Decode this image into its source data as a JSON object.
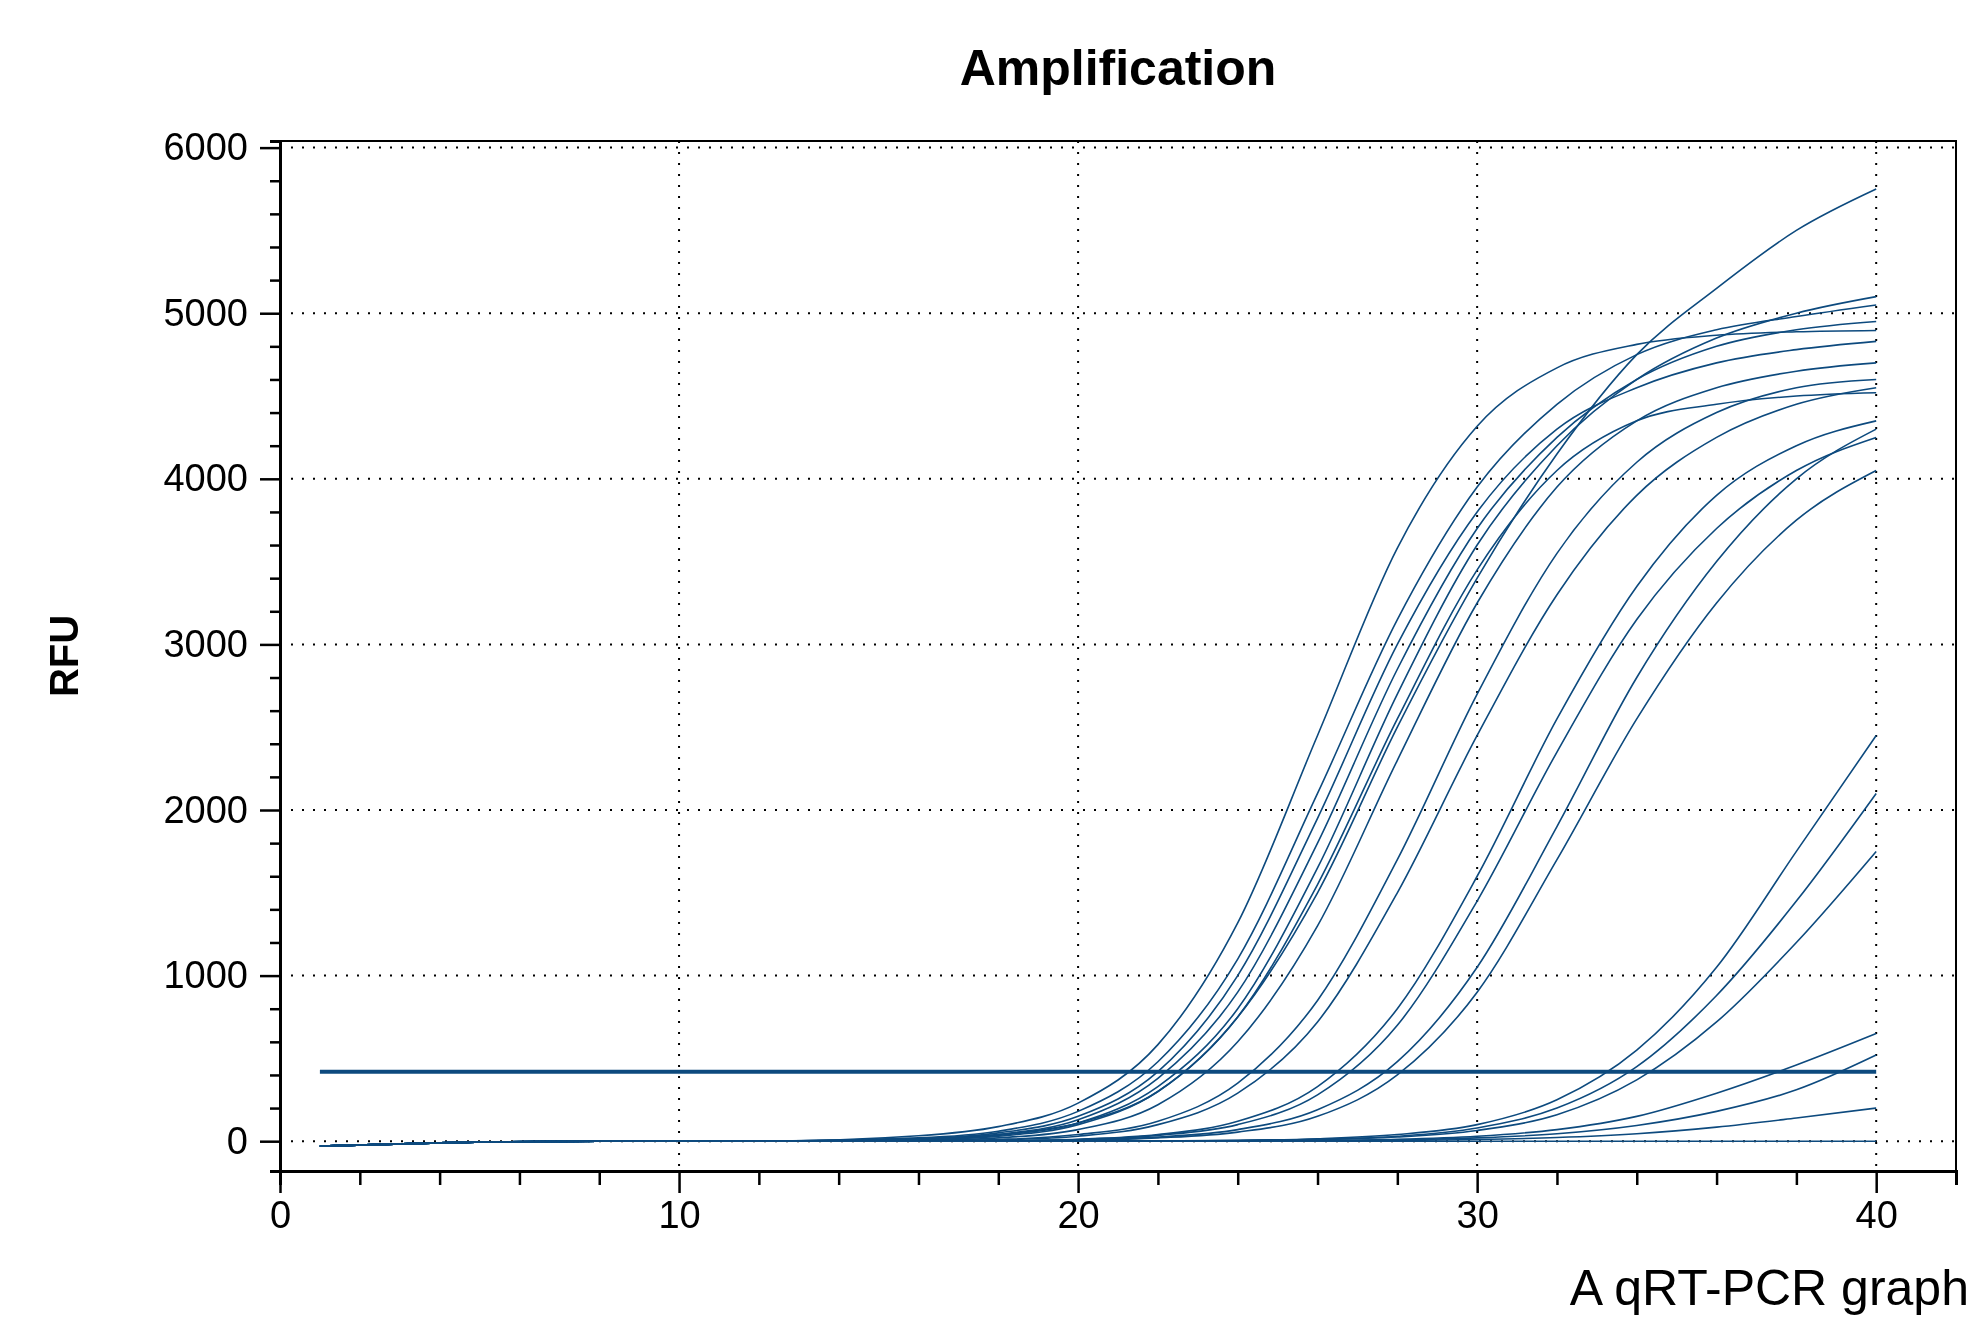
{
  "chart_data": {
    "type": "line",
    "title": "Amplification",
    "ylabel": "RFU",
    "annotations": [
      "A qRT-PCR graph"
    ],
    "x": [
      1,
      4,
      8,
      12,
      16,
      18,
      20,
      22,
      24,
      26,
      28,
      30,
      32,
      34,
      36,
      38,
      40
    ],
    "xlim": [
      0,
      42
    ],
    "ylim": [
      -180,
      6040
    ],
    "xticks": [
      0,
      {
        "value": 2,
        "label": null
      },
      {
        "value": 4,
        "label": null
      },
      {
        "value": 6,
        "label": null
      },
      {
        "value": 8,
        "label": null
      },
      10,
      {
        "value": 12,
        "label": null
      },
      {
        "value": 14,
        "label": null
      },
      {
        "value": 16,
        "label": null
      },
      {
        "value": 18,
        "label": null
      },
      20,
      {
        "value": 22,
        "label": null
      },
      {
        "value": 24,
        "label": null
      },
      {
        "value": 26,
        "label": null
      },
      {
        "value": 28,
        "label": null
      },
      30,
      {
        "value": 32,
        "label": null
      },
      {
        "value": 34,
        "label": null
      },
      {
        "value": 36,
        "label": null
      },
      {
        "value": 38,
        "label": null
      },
      40
    ],
    "yticks": [
      0,
      {
        "value": 200,
        "label": null
      },
      {
        "value": 400,
        "label": null
      },
      {
        "value": 600,
        "label": null
      },
      {
        "value": 800,
        "label": null
      },
      1000,
      {
        "value": 1200,
        "label": null
      },
      {
        "value": 1400,
        "label": null
      },
      {
        "value": 1600,
        "label": null
      },
      {
        "value": 1800,
        "label": null
      },
      2000,
      {
        "value": 2200,
        "label": null
      },
      {
        "value": 2400,
        "label": null
      },
      {
        "value": 2600,
        "label": null
      },
      {
        "value": 2800,
        "label": null
      },
      3000,
      {
        "value": 3200,
        "label": null
      },
      {
        "value": 3400,
        "label": null
      },
      {
        "value": 3600,
        "label": null
      },
      {
        "value": 3800,
        "label": null
      },
      4000,
      {
        "value": 4200,
        "label": null
      },
      {
        "value": 4400,
        "label": null
      },
      {
        "value": 4600,
        "label": null
      },
      {
        "value": 4800,
        "label": null
      },
      5000,
      {
        "value": 5200,
        "label": null
      },
      {
        "value": 5400,
        "label": null
      },
      {
        "value": 5600,
        "label": null
      },
      {
        "value": 5800,
        "label": null
      },
      6000
    ],
    "grid": true,
    "marker": "none",
    "line_style": "solid",
    "ref_lines": [
      {
        "axis": "y",
        "value": 420,
        "color": "#0d4a7e"
      }
    ],
    "series": [
      {
        "color": "#0d4a7e",
        "values": [
          -30,
          -10,
          0,
          0,
          33,
          88,
          230,
          583,
          1318,
          2450,
          3582,
          4317,
          4670,
          4812,
          4867,
          4888,
          4896
        ]
      },
      {
        "color": "#0d4a7e",
        "values": [
          -30,
          -10,
          0,
          0,
          15,
          40,
          110,
          300,
          750,
          1500,
          2500,
          3400,
          4150,
          4750,
          5150,
          5500,
          5750
        ]
      },
      {
        "color": "#0d4a7e",
        "values": [
          -30,
          -10,
          0,
          0,
          20,
          60,
          180,
          480,
          1100,
          2100,
          3150,
          3950,
          4450,
          4750,
          4900,
          4980,
          5050
        ]
      },
      {
        "color": "#0d4a7e",
        "values": [
          -30,
          -10,
          0,
          0,
          15,
          50,
          150,
          420,
          1000,
          1950,
          3000,
          3800,
          4300,
          4550,
          4700,
          4780,
          4830
        ]
      },
      {
        "color": "#0d4a7e",
        "values": [
          -30,
          -10,
          0,
          0,
          10,
          40,
          130,
          380,
          900,
          1800,
          2850,
          3700,
          4250,
          4600,
          4800,
          4900,
          4950
        ]
      },
      {
        "color": "#0d4a7e",
        "values": [
          -30,
          -10,
          0,
          0,
          10,
          35,
          110,
          330,
          800,
          1650,
          2700,
          3600,
          4200,
          4600,
          4850,
          5000,
          5100
        ]
      },
      {
        "color": "#0d4a7e",
        "values": [
          -30,
          -10,
          0,
          0,
          8,
          30,
          100,
          300,
          750,
          1550,
          2550,
          3450,
          4050,
          4350,
          4450,
          4500,
          4520
        ]
      },
      {
        "color": "#0d4a7e",
        "values": [
          -30,
          -10,
          0,
          0,
          5,
          20,
          70,
          220,
          600,
          1300,
          2300,
          3250,
          3950,
          4350,
          4550,
          4650,
          4700
        ]
      },
      {
        "color": "#0d4a7e",
        "values": [
          -30,
          -10,
          0,
          0,
          3,
          10,
          40,
          120,
          350,
          850,
          1700,
          2700,
          3550,
          4100,
          4400,
          4550,
          4600
        ]
      },
      {
        "color": "#0d4a7e",
        "values": [
          -30,
          -10,
          0,
          0,
          2,
          8,
          30,
          100,
          290,
          720,
          1500,
          2450,
          3300,
          3900,
          4250,
          4450,
          4550
        ]
      },
      {
        "color": "#0d4a7e",
        "values": [
          -30,
          -10,
          0,
          0,
          0,
          3,
          12,
          40,
          120,
          330,
          800,
          1600,
          2550,
          3350,
          3900,
          4200,
          4350
        ]
      },
      {
        "color": "#0d4a7e",
        "values": [
          -30,
          -10,
          0,
          0,
          0,
          2,
          10,
          35,
          100,
          280,
          700,
          1450,
          2350,
          3150,
          3700,
          4050,
          4250
        ]
      },
      {
        "color": "#0d4a7e",
        "values": [
          -30,
          -10,
          0,
          0,
          0,
          2,
          8,
          25,
          70,
          190,
          480,
          1050,
          1900,
          2800,
          3500,
          4000,
          4300
        ]
      },
      {
        "color": "#0d4a7e",
        "values": [
          -30,
          -10,
          0,
          0,
          0,
          1,
          6,
          20,
          55,
          150,
          400,
          900,
          1700,
          2550,
          3250,
          3750,
          4050
        ]
      },
      {
        "color": "#0d4a7e",
        "values": [
          -30,
          -10,
          0,
          0,
          0,
          0,
          0,
          2,
          5,
          15,
          40,
          100,
          250,
          550,
          1050,
          1750,
          2450
        ]
      },
      {
        "color": "#0d4a7e",
        "values": [
          -30,
          -10,
          0,
          0,
          0,
          0,
          0,
          1,
          4,
          12,
          30,
          80,
          200,
          450,
          880,
          1450,
          2100
        ]
      },
      {
        "color": "#0d4a7e",
        "values": [
          -30,
          -10,
          0,
          0,
          0,
          0,
          0,
          1,
          3,
          9,
          25,
          65,
          160,
          370,
          720,
          1200,
          1750
        ]
      },
      {
        "color": "#0d4a7e",
        "values": [
          -30,
          -10,
          0,
          0,
          0,
          0,
          0,
          0,
          2,
          5,
          12,
          30,
          70,
          150,
          290,
          460,
          650
        ]
      },
      {
        "color": "#0d4a7e",
        "values": [
          -30,
          -10,
          0,
          0,
          0,
          0,
          0,
          0,
          1,
          3,
          8,
          20,
          45,
          95,
          180,
          310,
          520
        ]
      },
      {
        "color": "#0d4a7e",
        "values": [
          -30,
          -10,
          0,
          0,
          0,
          0,
          0,
          0,
          0,
          1,
          4,
          10,
          22,
          45,
          85,
          140,
          200
        ]
      },
      {
        "color": "#0d4a7e",
        "values": [
          -30,
          -10,
          0,
          0,
          0,
          0,
          0,
          0,
          0,
          0,
          0,
          0,
          0,
          0,
          0,
          0,
          0
        ]
      }
    ]
  }
}
